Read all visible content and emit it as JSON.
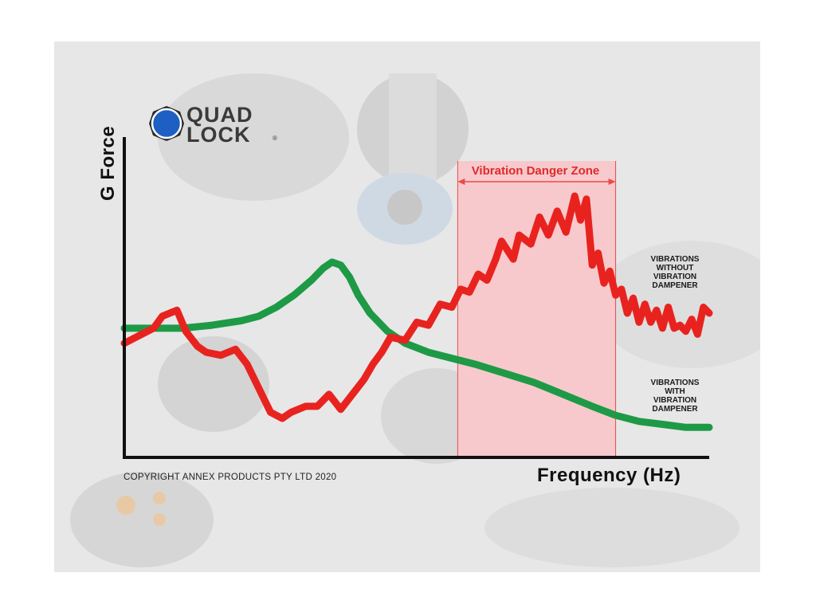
{
  "branding": {
    "logo_line1": "QUAD",
    "logo_line2": "LOCK",
    "logo_reg": "®",
    "brand_blue": "#1e5fc4"
  },
  "copyright": "COPYRIGHT ANNEX PRODUCTS PTY LTD 2020",
  "chart_data": {
    "type": "line",
    "title": "",
    "xlabel": "Frequency (Hz)",
    "ylabel": "G Force",
    "xlim": [
      0,
      100
    ],
    "ylim": [
      0,
      100
    ],
    "grid": false,
    "tick_labels": false,
    "danger_zone": {
      "label": "Vibration Danger Zone",
      "x_range": [
        57,
        84
      ],
      "fill": "#f7c9cc",
      "edge": "#e94a4a"
    },
    "series": [
      {
        "name": "VIBRATIONS WITHOUT VIBRATION DAMPENER",
        "label_lines": [
          "VIBRATIONS",
          "WITHOUT",
          "VIBRATION",
          "DAMPENER"
        ],
        "color": "#e8231f",
        "x": [
          0,
          3,
          5,
          6.5,
          9,
          10.5,
          12.5,
          14,
          16.5,
          19,
          21,
          23,
          25,
          27,
          28.5,
          31,
          33,
          35,
          37,
          39,
          41,
          42.5,
          44,
          45.5,
          48,
          50,
          52,
          54,
          56,
          57.5,
          59,
          60.5,
          62,
          63.5,
          64.5,
          66.5,
          67.5,
          69.5,
          71,
          72.5,
          74,
          75.5,
          77,
          78,
          79,
          80,
          81,
          82,
          83,
          84,
          85,
          86,
          87,
          88,
          89,
          90,
          91,
          92,
          93,
          94,
          95,
          96,
          97,
          98,
          99,
          100
        ],
        "y": [
          38,
          41,
          43,
          47,
          49,
          42,
          37,
          35,
          34,
          36,
          31,
          23,
          15,
          13,
          15,
          17,
          17,
          21,
          16,
          21,
          26,
          31,
          35,
          40,
          39,
          45,
          44,
          51,
          50,
          56,
          55,
          61,
          59,
          66,
          72,
          66,
          74,
          71,
          80,
          74,
          82,
          75,
          87,
          79,
          86,
          64,
          68,
          58,
          62,
          54,
          56,
          48,
          53,
          45,
          51,
          45,
          49,
          43,
          50,
          43,
          44,
          42,
          46,
          41,
          50,
          48
        ]
      },
      {
        "name": "VIBRATIONS WITH VIBRATION DAMPENER",
        "label_lines": [
          "VIBRATIONS",
          "WITH",
          "VIBRATION",
          "DAMPENER"
        ],
        "color": "#1e9a46",
        "x": [
          0,
          5,
          10,
          15,
          20,
          23,
          26,
          29,
          32,
          34,
          35.5,
          37,
          38.5,
          40,
          42,
          45,
          48,
          52,
          56,
          60,
          65,
          70,
          75,
          80,
          84,
          88,
          92,
          96,
          100
        ],
        "y": [
          43,
          43,
          43,
          44,
          45.5,
          47,
          50,
          54,
          59,
          63,
          65,
          64,
          60,
          54,
          48,
          42,
          38,
          35,
          33,
          31,
          28,
          25,
          21,
          17,
          14,
          12,
          11,
          10,
          10
        ]
      }
    ]
  }
}
